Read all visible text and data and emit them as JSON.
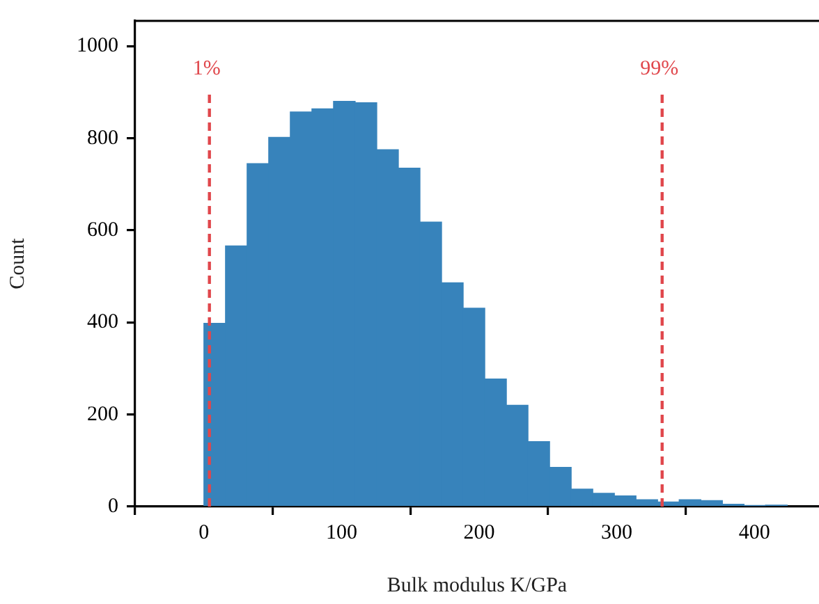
{
  "chart_data": {
    "type": "histogram",
    "xlabel": "Bulk modulus K/GPa",
    "ylabel": "Count",
    "bins": [
      0,
      15.7,
      31.4,
      47.1,
      62.8,
      78.5,
      94.2,
      109.9,
      125.6,
      141.3,
      157,
      172.7,
      188.4,
      204.1,
      219.8,
      235.5,
      251.2,
      266.9,
      282.6,
      298.3,
      314,
      329.7,
      345.4,
      361.1,
      376.8,
      392.5,
      408.2,
      423.9
    ],
    "values": [
      398,
      566,
      745,
      802,
      857,
      864,
      880,
      877,
      775,
      735,
      618,
      486,
      431,
      277,
      220,
      141,
      85,
      38,
      29,
      23,
      15,
      10,
      15,
      13,
      5,
      2,
      3
    ],
    "color": "#3783bb",
    "xlim": [
      -50,
      447
    ],
    "xticks": [
      0,
      100,
      200,
      300,
      400
    ],
    "ylim": [
      0,
      1055
    ],
    "yticks": [
      0,
      200,
      400,
      600,
      800,
      1000
    ],
    "grid": false,
    "legend": false,
    "ref_lines": [
      {
        "axis": "x",
        "value": 4,
        "color": "#e0474c",
        "line_style": "dashed"
      },
      {
        "axis": "x",
        "value": 333,
        "color": "#e0474c",
        "line_style": "dashed"
      }
    ],
    "annotations": [
      "1%",
      "99%"
    ]
  }
}
